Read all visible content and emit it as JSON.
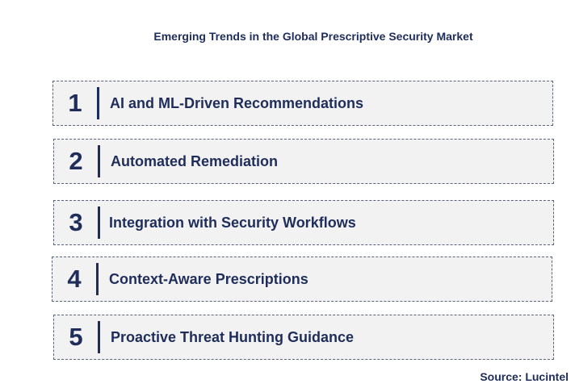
{
  "title": "Emerging Trends in the Global Prescriptive Security Market",
  "trends": [
    {
      "number": "1",
      "label": "AI and ML-Driven Recommendations"
    },
    {
      "number": "2",
      "label": "Automated Remediation"
    },
    {
      "number": "3",
      "label": "Integration with Security Workflows"
    },
    {
      "number": "4",
      "label": "Context-Aware Prescriptions"
    },
    {
      "number": "5",
      "label": "Proactive Threat Hunting Guidance"
    }
  ],
  "source": "Source: Lucintel",
  "colors": {
    "text": "#1f2d5a",
    "box_fill": "#f2f2f2",
    "box_border": "#5a6478"
  }
}
